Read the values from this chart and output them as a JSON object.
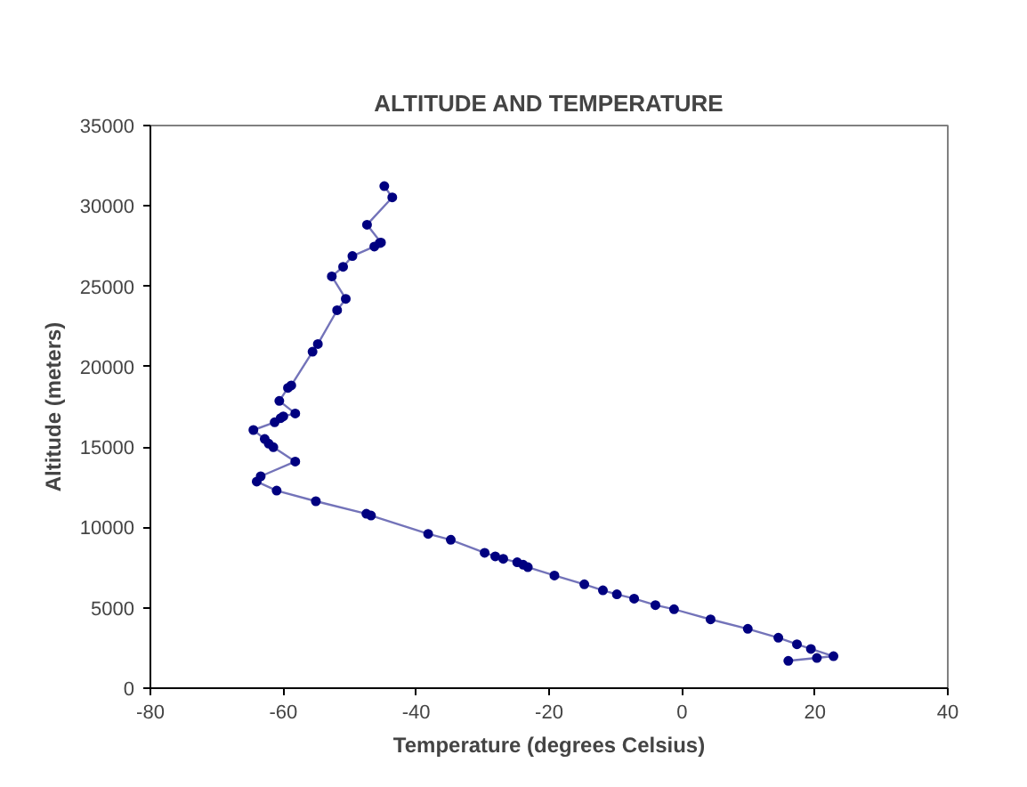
{
  "chart_data": {
    "type": "line",
    "title": "ALTITUDE AND TEMPERATURE",
    "xlabel": "Temperature (degrees Celsius)",
    "ylabel": "Altitude (meters)",
    "xlim": [
      -80,
      40
    ],
    "xticks": [
      -80,
      -60,
      -40,
      -20,
      0,
      20,
      40
    ],
    "ylim": [
      0,
      35000
    ],
    "yticks": [
      0,
      5000,
      10000,
      15000,
      20000,
      25000,
      30000,
      35000
    ],
    "grid": false,
    "marker": "circle",
    "line_style": "solid",
    "series": [
      {
        "color": "#000080",
        "x": [
          16.0,
          20.3,
          22.8,
          19.4,
          17.3,
          14.5,
          9.9,
          4.3,
          -1.2,
          -4.0,
          -7.2,
          -9.8,
          -11.9,
          -14.7,
          -19.2,
          -23.2,
          -23.9,
          -24.8,
          -26.9,
          -28.1,
          -29.7,
          -34.8,
          -38.2,
          -46.8,
          -47.5,
          -55.1,
          -61.0,
          -64.0,
          -63.4,
          -58.2,
          -61.5,
          -62.2,
          -62.8,
          -64.5,
          -61.3,
          -60.4,
          -60.0,
          -58.2,
          -60.6,
          -59.3,
          -58.8,
          -55.6,
          -54.8,
          -51.9,
          -50.6,
          -52.7,
          -51.0,
          -49.6,
          -46.3,
          -45.5,
          -45.3,
          -47.4,
          -43.6,
          -44.8
        ],
        "values": [
          1700,
          1880,
          1990,
          2440,
          2730,
          3140,
          3690,
          4280,
          4910,
          5170,
          5570,
          5840,
          6090,
          6460,
          7010,
          7530,
          7680,
          7830,
          8050,
          8200,
          8420,
          9230,
          9600,
          10740,
          10850,
          11630,
          12290,
          12850,
          13180,
          14100,
          14990,
          15210,
          15500,
          16060,
          16540,
          16800,
          16910,
          17090,
          17870,
          18680,
          18830,
          20930,
          21410,
          23510,
          24220,
          25620,
          26210,
          26880,
          27470,
          27690,
          27720,
          28830,
          30530,
          31230
        ]
      }
    ]
  }
}
